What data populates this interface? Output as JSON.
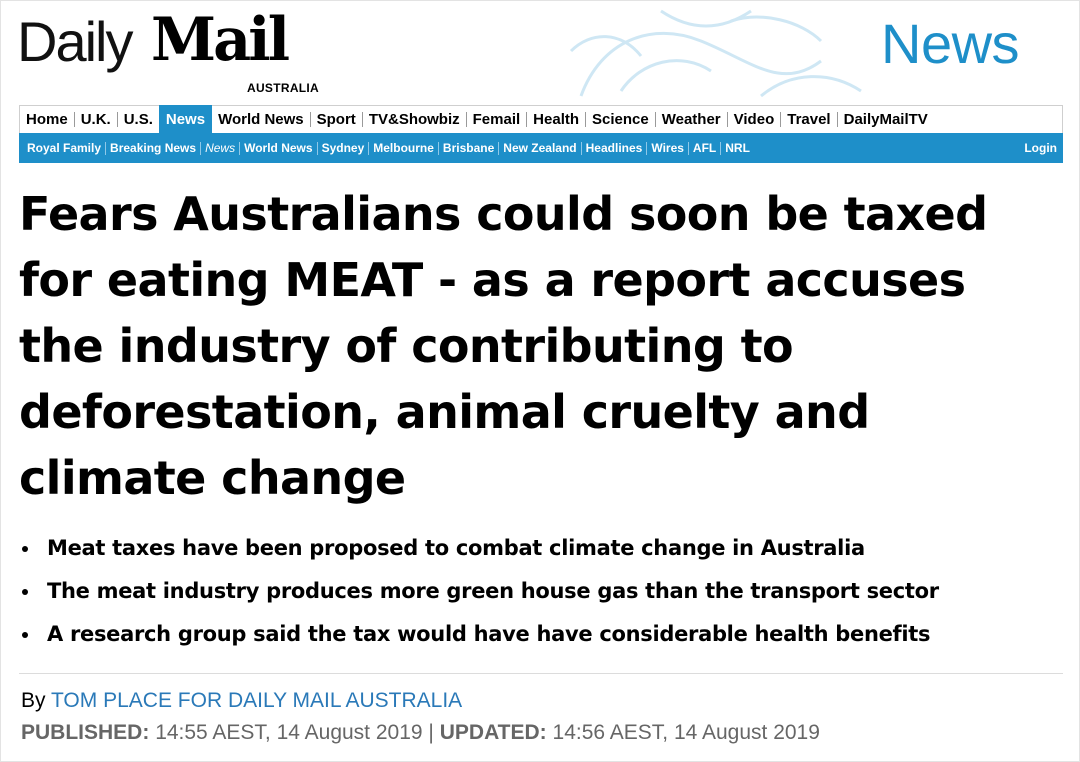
{
  "masthead": {
    "logo_daily": "Daily",
    "logo_mail": "Mail",
    "edition": "AUSTRALIA",
    "section_title": "News"
  },
  "nav": {
    "primary": [
      {
        "label": "Home"
      },
      {
        "label": "U.K."
      },
      {
        "label": "U.S."
      },
      {
        "label": "News",
        "active": true
      },
      {
        "label": "World News"
      },
      {
        "label": "Sport"
      },
      {
        "label": "TV&Showbiz"
      },
      {
        "label": "Femail"
      },
      {
        "label": "Health"
      },
      {
        "label": "Science"
      },
      {
        "label": "Weather"
      },
      {
        "label": "Video"
      },
      {
        "label": "Travel"
      },
      {
        "label": "DailyMailTV"
      }
    ],
    "secondary": [
      {
        "label": "Royal Family"
      },
      {
        "label": "Breaking News"
      },
      {
        "label": "News",
        "current": true
      },
      {
        "label": "World News"
      },
      {
        "label": "Sydney"
      },
      {
        "label": "Melbourne"
      },
      {
        "label": "Brisbane"
      },
      {
        "label": "New Zealand"
      },
      {
        "label": "Headlines"
      },
      {
        "label": "Wires"
      },
      {
        "label": "AFL"
      },
      {
        "label": "NRL"
      }
    ],
    "login": "Login"
  },
  "article": {
    "headline": "Fears Australians could soon be taxed for eating MEAT - as a report accuses the industry of contributing to deforestation, animal cruelty and climate change",
    "bullets": [
      "Meat taxes have been proposed to combat climate change in Australia",
      "The meat industry produces more green house gas than the transport sector",
      "A research group said the tax would have have considerable health benefits"
    ],
    "byline_prefix": "By",
    "author": "TOM PLACE FOR DAILY MAIL AUSTRALIA",
    "published_label": "PUBLISHED:",
    "published_value": "14:55 AEST, 14 August 2019",
    "date_separator": "|",
    "updated_label": "UPDATED:",
    "updated_value": "14:56 AEST, 14 August 2019"
  },
  "colors": {
    "brand_blue": "#1e8fc9",
    "author_link": "#2a79b8",
    "meta_gray": "#666666"
  }
}
